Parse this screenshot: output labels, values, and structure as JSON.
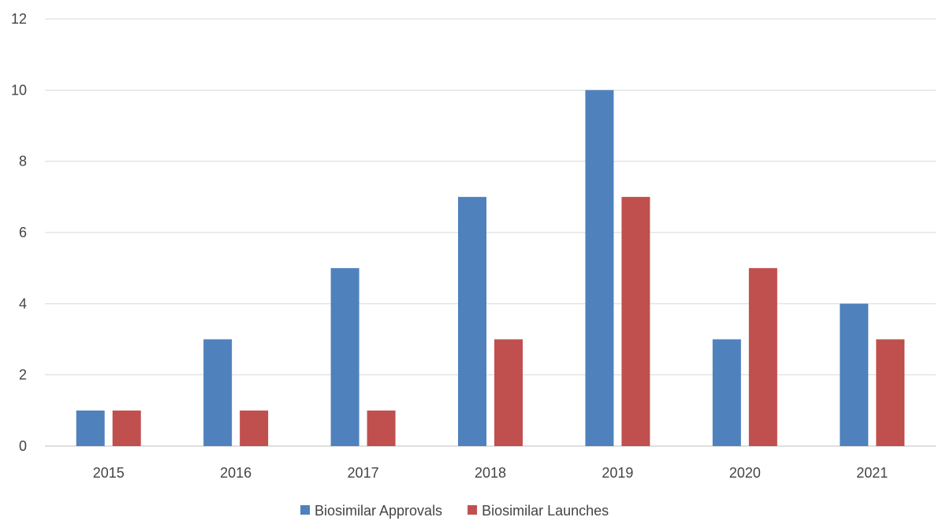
{
  "chart_data": {
    "type": "bar",
    "title": "",
    "xlabel": "",
    "ylabel": "",
    "categories": [
      "2015",
      "2016",
      "2017",
      "2018",
      "2019",
      "2020",
      "2021"
    ],
    "series": [
      {
        "name": "Biosimilar Approvals",
        "color": "#4f81bd",
        "values": [
          1,
          3,
          5,
          7,
          10,
          3,
          4
        ]
      },
      {
        "name": "Biosimilar Launches",
        "color": "#c0504d",
        "values": [
          1,
          1,
          1,
          3,
          7,
          5,
          3
        ]
      }
    ],
    "ylim": [
      0,
      12
    ],
    "yticks": [
      "0",
      "2",
      "4",
      "6",
      "8",
      "10",
      "12"
    ],
    "grid": true,
    "legend_position": "bottom"
  }
}
